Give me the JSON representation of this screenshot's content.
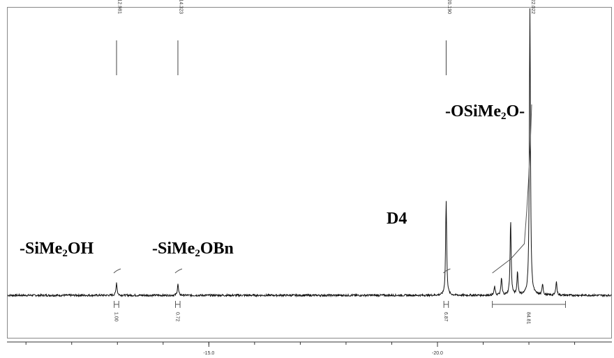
{
  "chart_data": {
    "type": "line",
    "title": "",
    "xlabel": "",
    "ylabel": "",
    "xlim": [
      -10.6,
      -23.8
    ],
    "axis_ticks": [
      {
        "value": -15.0,
        "label": "-15.0"
      },
      {
        "value": -20.0,
        "label": "-20.0"
      }
    ],
    "peaks": [
      {
        "position": -12.981,
        "label": "-12.981",
        "height": 0.045
      },
      {
        "position": -14.323,
        "label": "-14.323",
        "height": 0.04
      },
      {
        "position": -20.19,
        "label": "-20.190",
        "height": 0.33
      },
      {
        "position": -22.022,
        "label": "-22.022",
        "height": 1.0
      }
    ],
    "minor_peaks": [
      {
        "position": -21.25,
        "height": 0.03
      },
      {
        "position": -21.4,
        "height": 0.06
      },
      {
        "position": -21.6,
        "height": 0.26
      },
      {
        "position": -21.75,
        "height": 0.08
      },
      {
        "position": -22.3,
        "height": 0.04
      },
      {
        "position": -22.6,
        "height": 0.05
      }
    ],
    "integrals": [
      {
        "from": -12.93,
        "to": -13.03,
        "value": "1.00"
      },
      {
        "from": -14.27,
        "to": -14.37,
        "value": "0.72"
      },
      {
        "from": -20.14,
        "to": -20.24,
        "value": "6.87"
      },
      {
        "from": -21.2,
        "to": -22.8,
        "value": "84.81"
      }
    ],
    "annotations": {
      "silanol": {
        "prefix": "-SiMe",
        "sub": "2",
        "suffix": "OH"
      },
      "benzyloxy": {
        "prefix": "-SiMe",
        "sub": "2",
        "suffix": "OBn"
      },
      "d4": {
        "text": "D4"
      },
      "siloxane": {
        "prefix": "-OSiMe",
        "sub": "2",
        "suffix": "O-"
      }
    },
    "colors": {
      "trace": "#111111",
      "frame": "#888888"
    }
  }
}
